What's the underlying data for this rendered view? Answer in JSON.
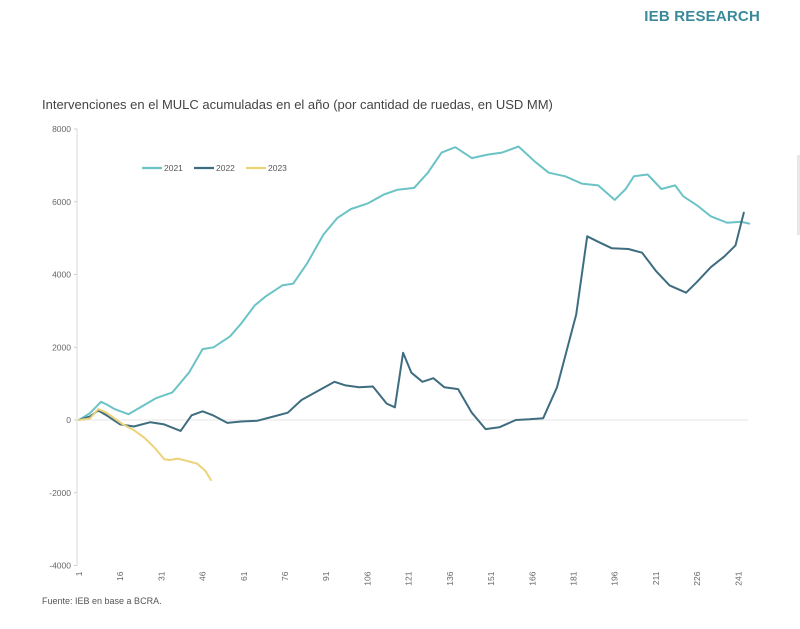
{
  "brand": "IEB RESEARCH",
  "source": "Fuente: IEB en base a BCRA.",
  "chart_data": {
    "type": "line",
    "title": "Intervenciones en el MULC acumuladas en el año (por cantidad de ruedas, en USD MM)",
    "xlabel": "",
    "ylabel": "",
    "ylim": [
      -4000,
      8000
    ],
    "xlim": [
      1,
      245
    ],
    "yticks": [
      8000,
      6000,
      4000,
      2000,
      0,
      -2000,
      -4000
    ],
    "ytick_labels": [
      "8000",
      "6000",
      "4000",
      "2000",
      "0",
      "-2000",
      "-4000"
    ],
    "xticks": [
      1,
      16,
      31,
      46,
      61,
      76,
      91,
      106,
      121,
      136,
      151,
      166,
      181,
      196,
      211,
      226,
      241
    ],
    "xtick_labels": [
      "1",
      "16",
      "31",
      "46",
      "61",
      "76",
      "91",
      "106",
      "121",
      "136",
      "151",
      "166",
      "181",
      "196",
      "211",
      "226",
      "241"
    ],
    "grid": false,
    "legend_position": "top-left",
    "series": [
      {
        "name": "2021",
        "color": "#6cc3c6",
        "x": [
          1,
          5,
          9,
          11,
          14,
          19,
          24,
          29,
          35,
          41,
          46,
          50,
          56,
          60,
          65,
          69,
          75,
          79,
          84,
          90,
          95,
          100,
          106,
          112,
          117,
          123,
          128,
          133,
          138,
          144,
          150,
          155,
          161,
          167,
          172,
          178,
          184,
          190,
          196,
          200,
          203,
          208,
          213,
          218,
          221,
          226,
          231,
          237,
          242,
          245
        ],
        "y": [
          0,
          190,
          500,
          430,
          300,
          160,
          380,
          600,
          760,
          1300,
          1950,
          2000,
          2300,
          2650,
          3150,
          3400,
          3700,
          3750,
          4300,
          5100,
          5550,
          5800,
          5950,
          6200,
          6330,
          6380,
          6800,
          7350,
          7500,
          7200,
          7300,
          7350,
          7520,
          7100,
          6800,
          6700,
          6500,
          6450,
          6050,
          6350,
          6700,
          6750,
          6350,
          6450,
          6150,
          5900,
          5600,
          5420,
          5450,
          5400
        ]
      },
      {
        "name": "2022",
        "color": "#3f6d80",
        "x": [
          1,
          5,
          8,
          11,
          16,
          21,
          27,
          32,
          38,
          42,
          46,
          50,
          55,
          60,
          66,
          72,
          77,
          82,
          88,
          94,
          98,
          103,
          108,
          113,
          116,
          119,
          122,
          126,
          130,
          134,
          139,
          144,
          149,
          154,
          160,
          165,
          170,
          175,
          182,
          186,
          190,
          195,
          201,
          206,
          211,
          216,
          222,
          226,
          231,
          236,
          240,
          243
        ],
        "y": [
          0,
          100,
          260,
          130,
          -120,
          -180,
          -60,
          -120,
          -300,
          130,
          240,
          120,
          -80,
          -40,
          -20,
          100,
          200,
          550,
          800,
          1050,
          950,
          900,
          920,
          450,
          350,
          1850,
          1300,
          1050,
          1150,
          900,
          850,
          200,
          -250,
          -200,
          0,
          20,
          50,
          900,
          2900,
          5050,
          4900,
          4720,
          4700,
          4600,
          4100,
          3700,
          3500,
          3800,
          4200,
          4500,
          4800,
          5700
        ]
      },
      {
        "name": "2023",
        "color": "#ecd27a",
        "x": [
          1,
          5,
          8,
          11,
          14,
          17,
          21,
          25,
          29,
          32,
          34,
          37,
          40,
          44,
          47,
          49
        ],
        "y": [
          0,
          40,
          300,
          200,
          40,
          -120,
          -280,
          -500,
          -800,
          -1080,
          -1100,
          -1060,
          -1120,
          -1200,
          -1400,
          -1650
        ]
      }
    ]
  }
}
